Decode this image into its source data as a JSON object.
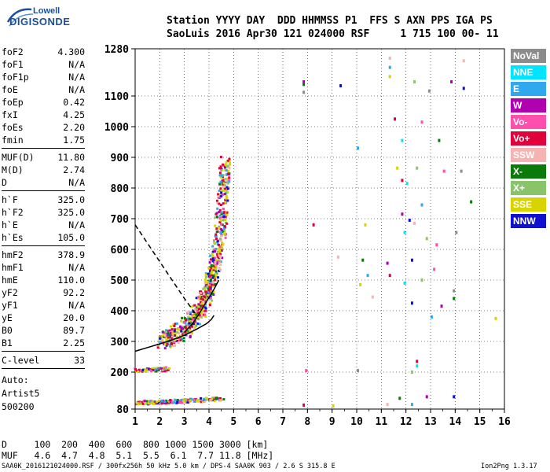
{
  "logo": {
    "line1": "Lowell",
    "line2": "DIGISONDE"
  },
  "header": {
    "line1": "Station YYYY DAY  DDD HHMMSS P1  FFS S AXN PPS IGA PS",
    "line2": "SaoLuis 2016 Apr30 121 024000 RSF     1 715 100 00- 11"
  },
  "params": {
    "group1": [
      {
        "name": "foF2",
        "value": "4.300"
      },
      {
        "name": "foF1",
        "value": "N/A"
      },
      {
        "name": "foF1p",
        "value": "N/A"
      },
      {
        "name": "foE",
        "value": "N/A"
      },
      {
        "name": "foEp",
        "value": "0.42"
      },
      {
        "name": "fxI",
        "value": "4.25"
      },
      {
        "name": "foEs",
        "value": "2.20"
      },
      {
        "name": "fmin",
        "value": "1.75"
      }
    ],
    "group2": [
      {
        "name": "MUF(D)",
        "value": "11.80"
      },
      {
        "name": "M(D)",
        "value": "2.74"
      },
      {
        "name": "D",
        "value": "N/A"
      }
    ],
    "group3": [
      {
        "name": "h`F",
        "value": "325.0"
      },
      {
        "name": "h`F2",
        "value": "325.0"
      },
      {
        "name": "h`E",
        "value": "N/A"
      },
      {
        "name": "h`Es",
        "value": "105.0"
      }
    ],
    "group4": [
      {
        "name": "hmF2",
        "value": "378.9"
      },
      {
        "name": "hmF1",
        "value": "N/A"
      },
      {
        "name": "hmE",
        "value": "110.0"
      },
      {
        "name": "yF2",
        "value": "92.2"
      },
      {
        "name": "yF1",
        "value": "N/A"
      },
      {
        "name": "yE",
        "value": "20.0"
      },
      {
        "name": "B0",
        "value": "89.7"
      },
      {
        "name": "B1",
        "value": "2.25"
      }
    ],
    "group5": [
      {
        "name": "C-level",
        "value": "33"
      }
    ],
    "auto": [
      "Auto:",
      "Artist5",
      "500200"
    ]
  },
  "legend": [
    {
      "label": "NoVal",
      "color": "#8c8c8c"
    },
    {
      "label": "NNE",
      "color": "#00e5ff"
    },
    {
      "label": "E",
      "color": "#2fa8f0"
    },
    {
      "label": "W",
      "color": "#b000b0"
    },
    {
      "label": "Vo-",
      "color": "#ff4fae"
    },
    {
      "label": "Vo+",
      "color": "#e0003a"
    },
    {
      "label": "SSW",
      "color": "#f7b2b2"
    },
    {
      "label": "X-",
      "color": "#0a7a0a"
    },
    {
      "label": "X+",
      "color": "#8ac46a"
    },
    {
      "label": "SSE",
      "color": "#d8d400"
    },
    {
      "label": "NNW",
      "color": "#1010d0"
    }
  ],
  "footer": {
    "line1": "D     100  200  400  600  800 1000 1500 3000 [km]",
    "line2": "MUF   4.6  4.7  4.8  5.1  5.5  6.1  7.7 11.8 [MHz]",
    "source": "SAA0K_2016121024000.RSF / 300fx256h 50 kHz 5.0 km / DPS-4 SAA0K 903 / 2.6 S 315.8 E",
    "version": "Ion2Png 1.3.17"
  },
  "chart_data": {
    "type": "scatter",
    "title": "",
    "xlabel": "",
    "ylabel": "",
    "xlim": [
      1,
      16
    ],
    "ylim": [
      80,
      1280
    ],
    "xticks": [
      "1",
      "2",
      "3",
      "4",
      "5",
      "6",
      "7",
      "8",
      "9",
      "10",
      "11",
      "12",
      "13",
      "14",
      "15",
      "16"
    ],
    "yticks": [
      "80",
      "200",
      "300",
      "400",
      "500",
      "600",
      "700",
      "800",
      "900",
      "1000",
      "1100",
      "1280"
    ],
    "grid": true,
    "curves": [
      {
        "style": "solid",
        "x": [
          1.0,
          1.5,
          2.0,
          2.5,
          3.0,
          3.5,
          3.9,
          4.1,
          4.2
        ],
        "y": [
          268,
          280,
          292,
          305,
          320,
          340,
          358,
          372,
          385
        ]
      },
      {
        "style": "solid",
        "x": [
          3.0,
          3.3,
          3.6,
          3.9,
          4.2,
          4.4
        ],
        "y": [
          330,
          355,
          390,
          430,
          470,
          500
        ]
      },
      {
        "style": "dashed",
        "x": [
          1.0,
          1.5,
          2.0,
          2.5,
          3.0,
          3.5
        ],
        "y": [
          680,
          620,
          560,
          500,
          440,
          385
        ]
      }
    ],
    "echo_traces": [
      {
        "name": "F-layer trace",
        "x": [
          2.0,
          2.5,
          3.0,
          3.3,
          3.6,
          3.9,
          4.1,
          4.3,
          4.45,
          4.55,
          4.6
        ],
        "y": [
          305,
          320,
          345,
          375,
          410,
          460,
          520,
          600,
          700,
          800,
          880
        ]
      },
      {
        "name": "Es trace",
        "x": [
          1.0,
          1.5,
          2.0,
          2.3
        ],
        "y": [
          210,
          210,
          212,
          214
        ]
      },
      {
        "name": "E trace",
        "x": [
          1.0,
          1.5,
          2.0,
          2.5,
          3.0,
          3.5,
          4.0,
          4.5
        ],
        "y": [
          105,
          104,
          106,
          108,
          110,
          112,
          115,
          118
        ]
      }
    ],
    "scattered_points": [
      {
        "x": 7.8,
        "y": 1120
      },
      {
        "x": 7.8,
        "y": 1150
      },
      {
        "x": 7.8,
        "y": 1160
      },
      {
        "x": 9.3,
        "y": 1145
      },
      {
        "x": 11.3,
        "y": 1250
      },
      {
        "x": 11.3,
        "y": 1215
      },
      {
        "x": 11.3,
        "y": 1180
      },
      {
        "x": 11.5,
        "y": 1030
      },
      {
        "x": 11.8,
        "y": 960
      },
      {
        "x": 12.3,
        "y": 1160
      },
      {
        "x": 12.6,
        "y": 1020
      },
      {
        "x": 12.9,
        "y": 1125
      },
      {
        "x": 13.3,
        "y": 960
      },
      {
        "x": 13.8,
        "y": 1160
      },
      {
        "x": 14.3,
        "y": 1135
      },
      {
        "x": 14.3,
        "y": 1240
      },
      {
        "x": 10.0,
        "y": 935
      },
      {
        "x": 11.6,
        "y": 870
      },
      {
        "x": 11.8,
        "y": 830
      },
      {
        "x": 12.0,
        "y": 820
      },
      {
        "x": 12.4,
        "y": 870
      },
      {
        "x": 13.5,
        "y": 860
      },
      {
        "x": 14.2,
        "y": 860
      },
      {
        "x": 14.6,
        "y": 760
      },
      {
        "x": 11.8,
        "y": 720
      },
      {
        "x": 12.1,
        "y": 700
      },
      {
        "x": 12.3,
        "y": 690
      },
      {
        "x": 12.6,
        "y": 750
      },
      {
        "x": 10.3,
        "y": 685
      },
      {
        "x": 8.2,
        "y": 685
      },
      {
        "x": 11.9,
        "y": 660
      },
      {
        "x": 12.8,
        "y": 640
      },
      {
        "x": 13.2,
        "y": 620
      },
      {
        "x": 14.0,
        "y": 660
      },
      {
        "x": 10.2,
        "y": 570
      },
      {
        "x": 11.2,
        "y": 560
      },
      {
        "x": 12.2,
        "y": 570
      },
      {
        "x": 9.2,
        "y": 580
      },
      {
        "x": 10.4,
        "y": 520
      },
      {
        "x": 10.1,
        "y": 490
      },
      {
        "x": 11.3,
        "y": 520
      },
      {
        "x": 11.9,
        "y": 495
      },
      {
        "x": 12.6,
        "y": 505
      },
      {
        "x": 13.1,
        "y": 540
      },
      {
        "x": 13.9,
        "y": 470
      },
      {
        "x": 13.9,
        "y": 445
      },
      {
        "x": 13.4,
        "y": 420
      },
      {
        "x": 12.2,
        "y": 430
      },
      {
        "x": 10.6,
        "y": 450
      },
      {
        "x": 13.0,
        "y": 385
      },
      {
        "x": 15.6,
        "y": 380
      },
      {
        "x": 12.4,
        "y": 240
      },
      {
        "x": 12.4,
        "y": 225
      },
      {
        "x": 12.2,
        "y": 205
      },
      {
        "x": 7.9,
        "y": 210
      },
      {
        "x": 10.0,
        "y": 210
      },
      {
        "x": 11.7,
        "y": 120
      },
      {
        "x": 12.8,
        "y": 125
      },
      {
        "x": 13.9,
        "y": 125
      },
      {
        "x": 11.2,
        "y": 100
      },
      {
        "x": 12.2,
        "y": 100
      },
      {
        "x": 9.0,
        "y": 95
      },
      {
        "x": 7.8,
        "y": 98
      }
    ]
  }
}
